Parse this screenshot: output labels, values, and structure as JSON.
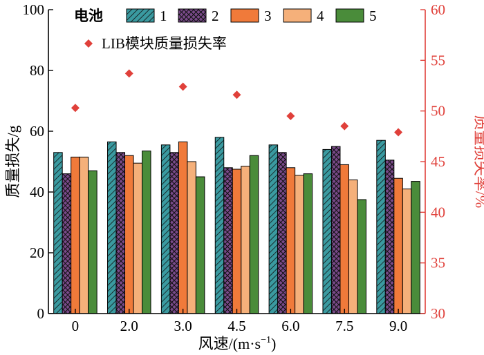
{
  "chart_data": {
    "type": "bar",
    "categories": [
      "0",
      "2.0",
      "3.0",
      "4.5",
      "6.0",
      "7.5",
      "9.0"
    ],
    "xlabel": "风速/(m·s",
    "xlabel_sup": "−1",
    "xlabel_end": ")",
    "ylabel": "质量损失/g",
    "ylim": [
      0,
      100
    ],
    "yticks": [
      0,
      20,
      40,
      60,
      80,
      100
    ],
    "y2label": "质量损失率/%",
    "y2lim": [
      30,
      60
    ],
    "y2ticks": [
      30,
      35,
      40,
      45,
      50,
      55,
      60
    ],
    "legend_title": "电池",
    "series": [
      {
        "name": "1",
        "color": "#3a9aa0",
        "pattern": "hatch",
        "values": [
          53,
          56.5,
          55.5,
          58,
          55.5,
          54,
          57
        ]
      },
      {
        "name": "2",
        "color": "#7a4a8a",
        "pattern": "cross",
        "values": [
          46,
          53,
          53,
          48,
          53,
          55,
          50.5
        ]
      },
      {
        "name": "3",
        "color": "#f07a3a",
        "pattern": "solid",
        "values": [
          51.5,
          52,
          56.5,
          47.5,
          48,
          49,
          44.5
        ]
      },
      {
        "name": "4",
        "color": "#f5b07a",
        "pattern": "solid",
        "values": [
          51.5,
          49.5,
          50,
          48.5,
          45.5,
          44,
          41
        ]
      },
      {
        "name": "5",
        "color": "#4a8c3a",
        "pattern": "solid",
        "values": [
          47,
          53.5,
          45,
          52,
          46,
          37.5,
          43.5
        ]
      }
    ],
    "secondary_series": {
      "name": "LIB模块质量损失率",
      "color": "#e0403a",
      "marker": "diamond",
      "values": [
        50.3,
        53.7,
        52.4,
        51.6,
        49.5,
        48.5,
        47.9
      ]
    }
  }
}
